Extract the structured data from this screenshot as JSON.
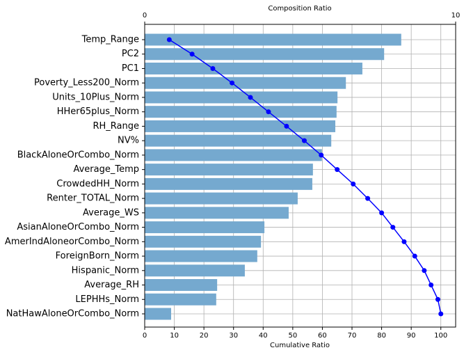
{
  "chart_data": {
    "type": "bar",
    "orientation": "horizontal",
    "x2label": "Composition Ratio",
    "xlabel": "Cumulative Ratio",
    "categories": [
      "Temp_Range",
      "PC2",
      "PC1",
      "Poverty_Less200_Norm",
      "Units_10Plus_Norm",
      "HHer65plus_Norm",
      "RH_Range",
      "NV%",
      "BlackAloneOrCombo_Norm",
      "Average_Temp",
      "CrowdedHH_Norm",
      "Renter_TOTAL_Norm",
      "Average_WS",
      "AsianAloneOrCombo_Norm",
      "AmerIndAloneorCombo_Norm",
      "ForeignBorn_Norm",
      "Hispanic_Norm",
      "Average_RH",
      "LEPHHs_Norm",
      "NatHawAloneOrCombo_Norm"
    ],
    "series": [
      {
        "type": "bar",
        "axis": "x2",
        "color": "#75a9cf",
        "values": [
          8.25,
          7.7,
          7.0,
          6.47,
          6.2,
          6.17,
          6.13,
          6.0,
          5.7,
          5.41,
          5.39,
          4.92,
          4.63,
          3.85,
          3.74,
          3.62,
          3.22,
          2.33,
          2.3,
          0.85
        ]
      },
      {
        "type": "line",
        "axis": "x",
        "color": "#0000ff",
        "values": [
          8.3,
          16.0,
          23.0,
          29.5,
          35.7,
          41.8,
          47.9,
          53.9,
          59.6,
          65.0,
          70.4,
          75.3,
          80.0,
          83.8,
          87.6,
          91.2,
          94.4,
          96.7,
          99.0,
          100
        ]
      }
    ],
    "xlim": [
      0,
      105
    ],
    "xticks": [
      0,
      10,
      20,
      30,
      40,
      50,
      60,
      70,
      80,
      90,
      100
    ],
    "x2lim": [
      0,
      10
    ],
    "x2ticks": [
      0,
      10
    ],
    "grid": true
  }
}
